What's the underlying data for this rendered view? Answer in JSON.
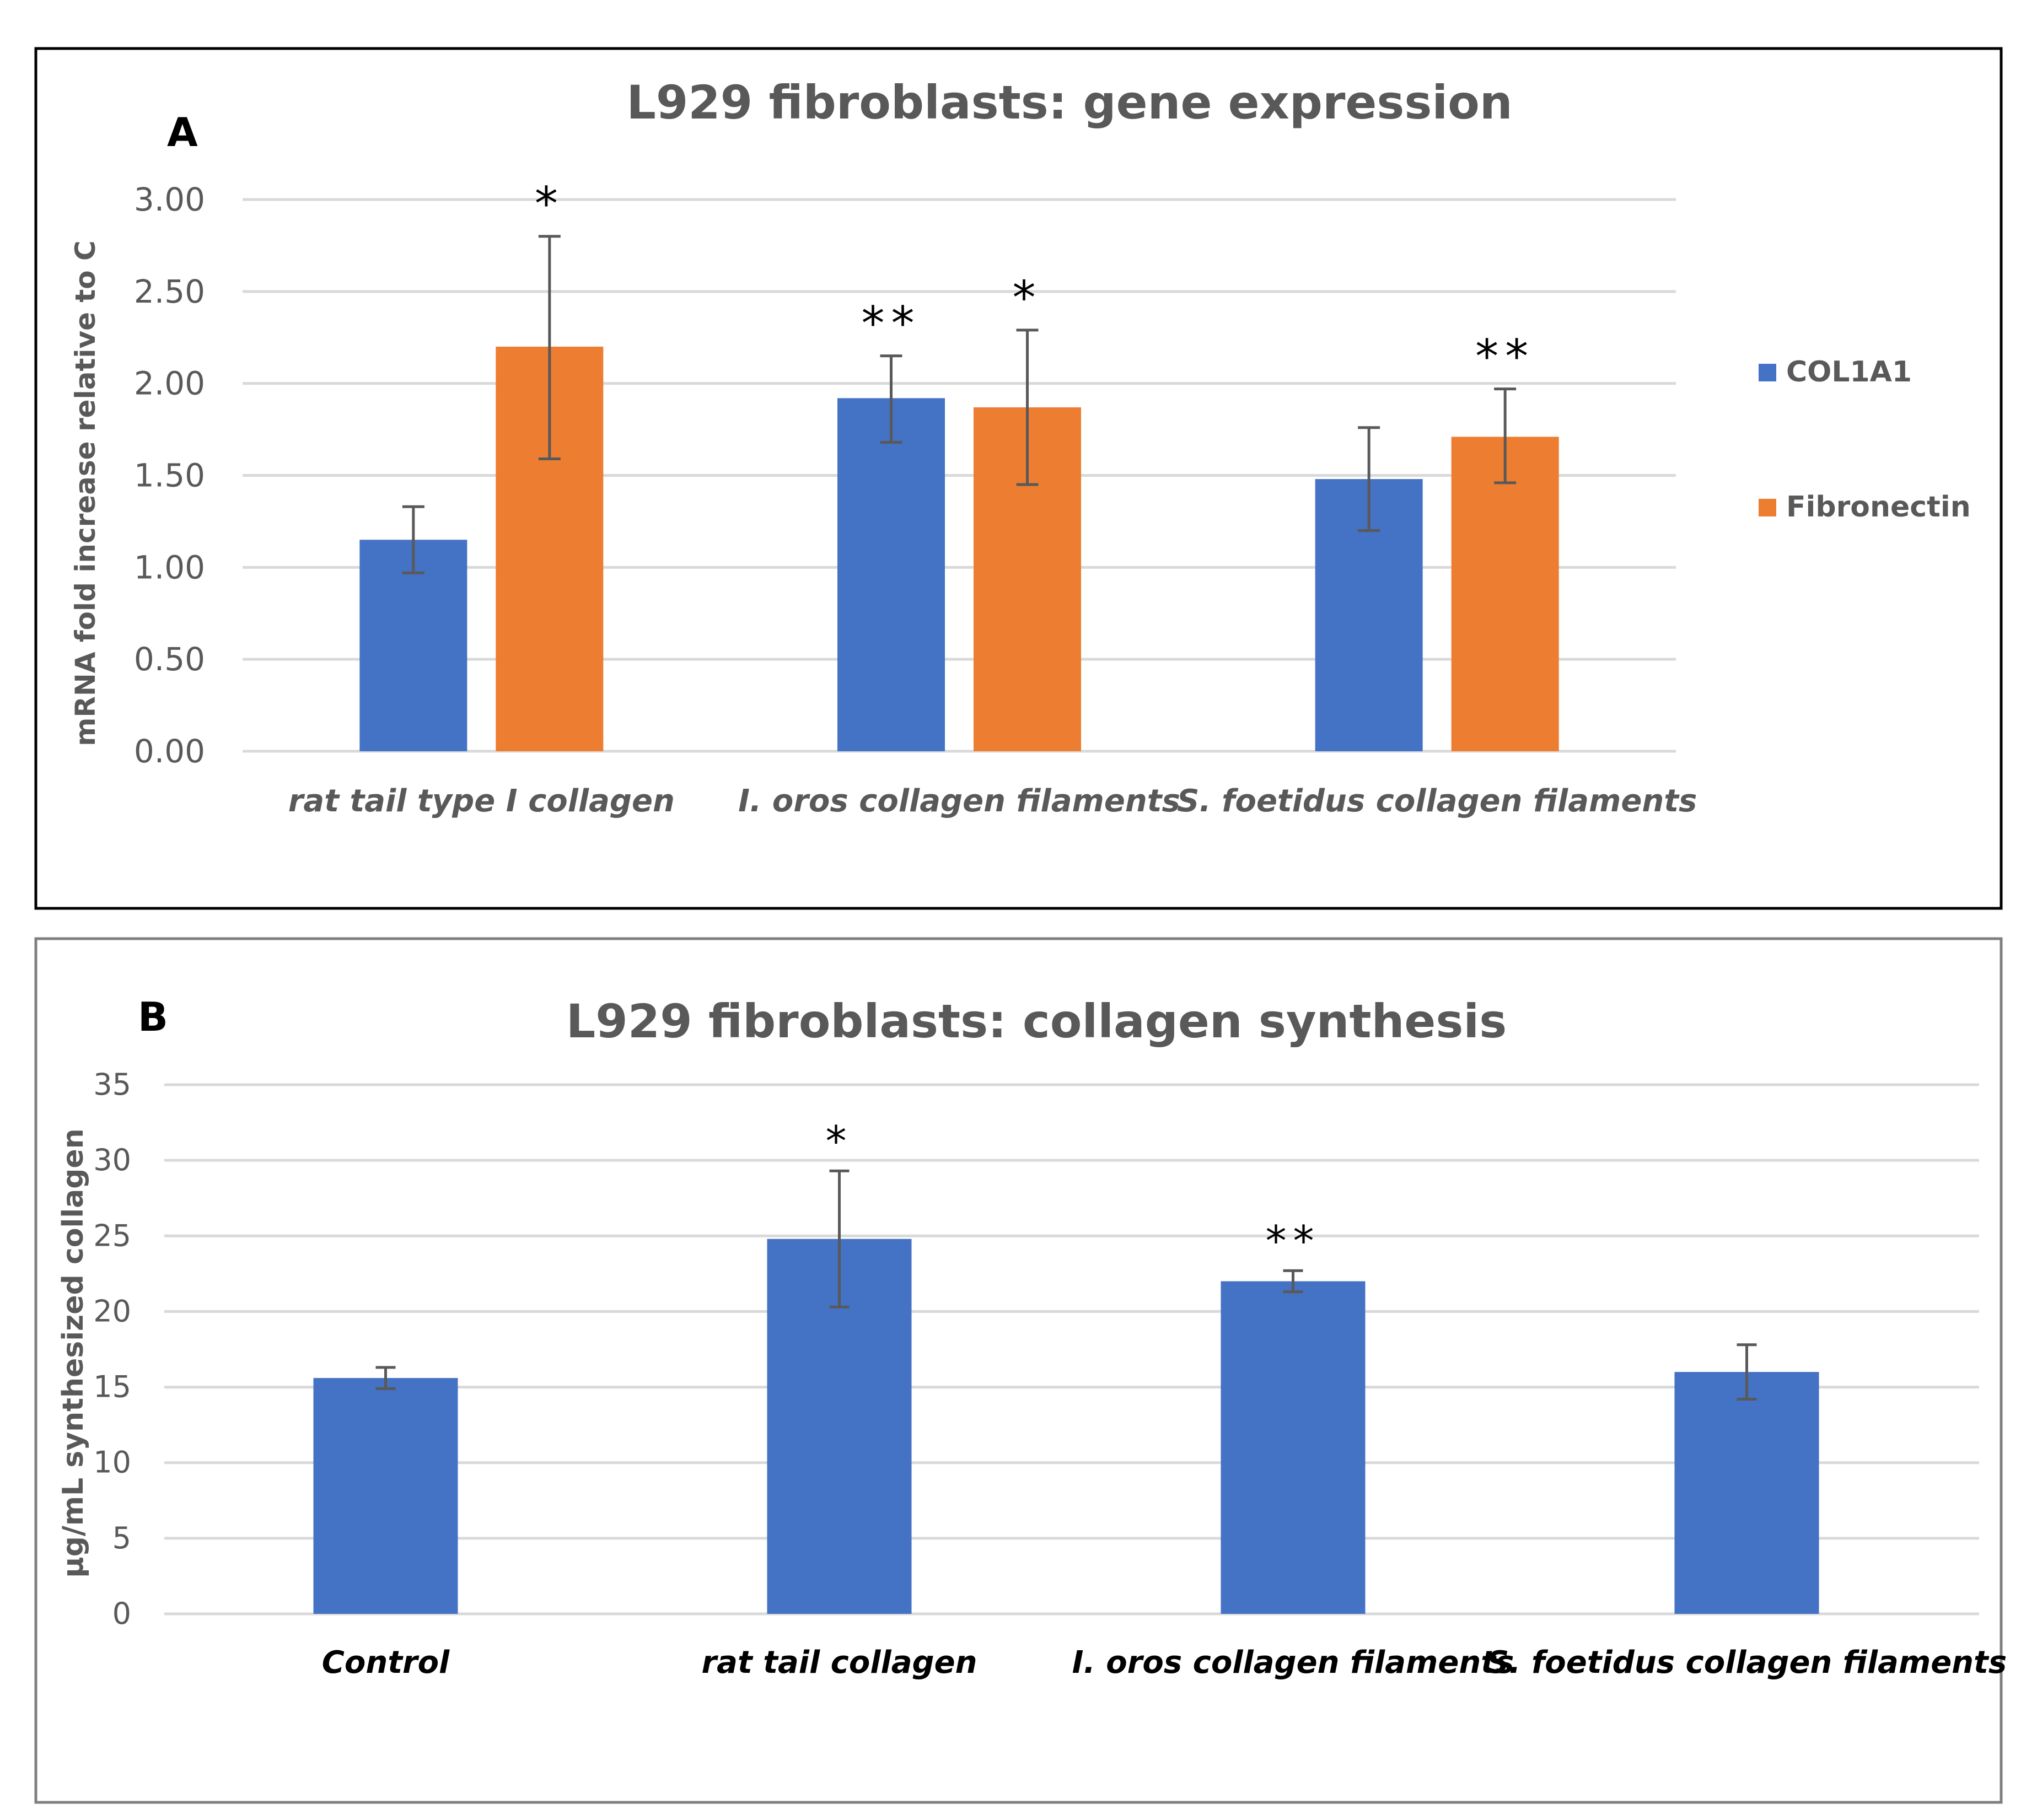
{
  "chart_data": [
    {
      "type": "bar",
      "panel": "A",
      "title": "L929 fibroblasts: gene expression",
      "ylabel": "mRNA fold increase relative to C",
      "xlabel": "",
      "ylim": [
        0,
        3.0
      ],
      "yticks": [
        "0.00",
        "0.50",
        "1.00",
        "1.50",
        "2.00",
        "2.50",
        "3.00"
      ],
      "grid": true,
      "legend_position": "right",
      "categories": [
        "rat tail type I collagen",
        "I. oros collagen filaments",
        "S. foetidus collagen filaments"
      ],
      "series": [
        {
          "name": "COL1A1",
          "color": "#4472C4",
          "values": [
            1.15,
            1.92,
            1.48
          ],
          "err_low": [
            0.97,
            1.68,
            1.2
          ],
          "err_high": [
            1.33,
            2.15,
            1.76
          ],
          "significance": [
            "",
            "**",
            ""
          ]
        },
        {
          "name": "Fibronectin",
          "color": "#ED7D31",
          "values": [
            2.2,
            1.87,
            1.71
          ],
          "err_low": [
            1.59,
            1.45,
            1.46
          ],
          "err_high": [
            2.8,
            2.29,
            1.97
          ],
          "significance": [
            "*",
            "*",
            "**"
          ]
        }
      ]
    },
    {
      "type": "bar",
      "panel": "B",
      "title": "L929 fibroblasts:  collagen synthesis",
      "ylabel": "µg/mL synthesized collagen",
      "xlabel": "",
      "ylim": [
        0,
        35
      ],
      "yticks": [
        "0",
        "5",
        "10",
        "15",
        "20",
        "25",
        "30",
        "35"
      ],
      "grid": true,
      "categories": [
        "Control",
        "rat tail collagen",
        "I. oros collagen filaments",
        "S. foetidus collagen filaments"
      ],
      "series": [
        {
          "color": "#4472C4",
          "values": [
            15.6,
            24.8,
            22.0,
            16.0
          ],
          "err_low": [
            14.9,
            20.3,
            21.3,
            14.2
          ],
          "err_high": [
            16.3,
            29.3,
            22.7,
            17.8
          ],
          "significance": [
            "",
            "*",
            "**",
            ""
          ]
        }
      ]
    }
  ]
}
